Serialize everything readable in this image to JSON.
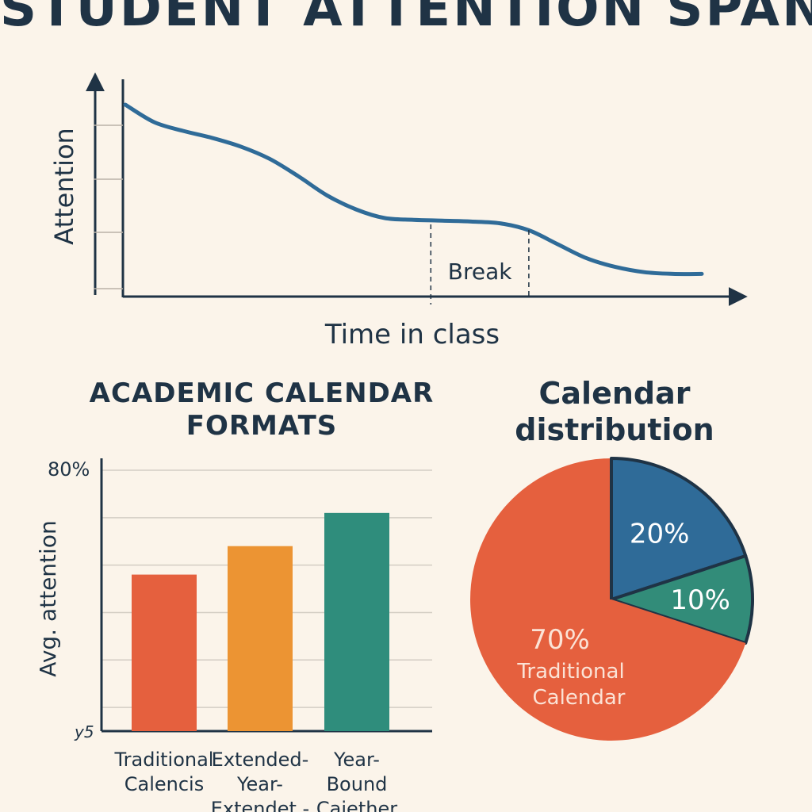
{
  "title": "STUDENT ATTENTION SPAN",
  "line_chart": {
    "ylabel": "Attention",
    "xlabel": "Time in class",
    "break_label": "Break"
  },
  "bar_chart": {
    "title_line1": "ACADEMIC CALENDAR",
    "title_line2": "FORMATS",
    "ylabel": "Avg. attention",
    "y_top_label": "80%",
    "y_bottom_label": "y5",
    "category_lines": [
      [
        "Traditional",
        "Calencis"
      ],
      [
        "Extended-",
        "Year-",
        "Extendet -"
      ],
      [
        "Year-",
        "Bound",
        "Cajether"
      ]
    ]
  },
  "pie_chart": {
    "title_line1": "Calendar",
    "title_line2": "distribution",
    "label_traditional_line1": "Traditional",
    "label_traditional_line2": "Calendar"
  },
  "chart_data": [
    {
      "type": "line",
      "title": "",
      "xlabel": "Time in class",
      "ylabel": "Attention",
      "x": [
        0,
        5,
        10,
        15,
        20,
        25,
        30,
        35,
        40,
        45,
        50,
        55,
        60,
        65,
        70,
        75,
        80,
        85,
        90,
        95,
        100
      ],
      "y": [
        100,
        90,
        85,
        81,
        76,
        69,
        59,
        48,
        40,
        35,
        34,
        33.5,
        33,
        32,
        28,
        20,
        12,
        7,
        4,
        3,
        3
      ],
      "annotations": [
        {
          "text": "Break",
          "x_start": 53,
          "x_end": 70
        }
      ],
      "ylim": [
        0,
        100
      ],
      "grid": false
    },
    {
      "type": "bar",
      "title": "ACADEMIC CALENDAR FORMATS",
      "categories": [
        "Traditional Calencis",
        "Extended-Year-Extendet -",
        "Year-Bound Cajether"
      ],
      "values": [
        58,
        64,
        71
      ],
      "ylim": [
        25,
        80
      ],
      "ylabel": "Avg. attention",
      "grid": true,
      "colors": [
        "#e5603e",
        "#ec9433",
        "#2f8d7c"
      ]
    },
    {
      "type": "pie",
      "title": "Calendar distribution",
      "slices": [
        {
          "label": "Traditional Calendar",
          "value": 70,
          "text": "70%",
          "color": "#e5603e"
        },
        {
          "label": "",
          "value": 20,
          "text": "20%",
          "color": "#2f6b98"
        },
        {
          "label": "",
          "value": 10,
          "text": "10%",
          "color": "#328c79"
        }
      ]
    }
  ]
}
